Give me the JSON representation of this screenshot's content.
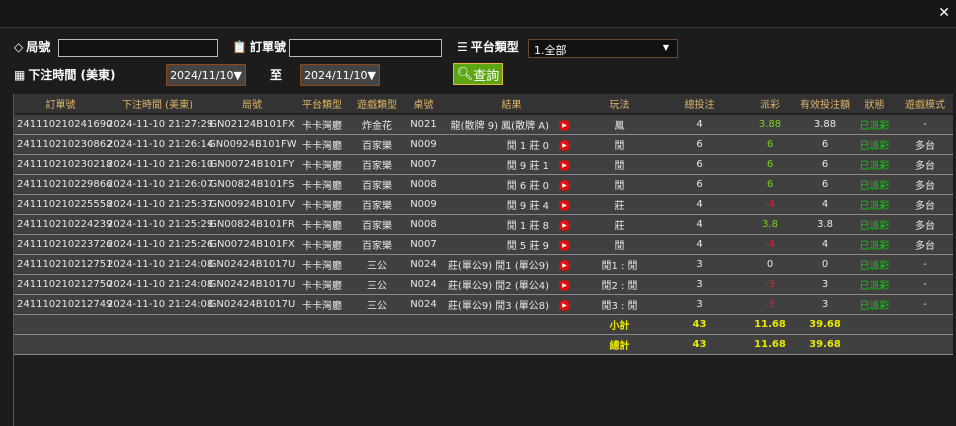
{
  "window": {
    "close_icon": "close-icon"
  },
  "filters": {
    "round_label": "局號",
    "round_value": "",
    "order_label": "訂單號",
    "order_value": "",
    "platform_label": "平台類型",
    "platform_value": "1.全部",
    "time_label": "下注時間 (美東)",
    "date_from": "2024/11/10▼",
    "to_label": "至",
    "date_to": "2024/11/10▼",
    "query_label": "查詢"
  },
  "table": {
    "headers": [
      "訂單號",
      "下注時間 (美東)",
      "局號",
      "平台類型",
      "遊戲類型",
      "桌號",
      "結果",
      "玩法",
      "總投注",
      "派彩",
      "有效投注額",
      "狀態",
      "遊戲模式"
    ],
    "rows": [
      [
        "241110210241690",
        "2024-11-10 21:27:29",
        "GN02124B101FX",
        "卡卡灣廳",
        "炸金花",
        "N021",
        "龍(散牌 9) 鳳(散牌 A)",
        "鳳",
        "4",
        "3.88",
        "3.88",
        "已派彩",
        "-"
      ],
      [
        "241110210230862",
        "2024-11-10 21:26:14",
        "GN00924B101FW",
        "卡卡灣廳",
        "百家樂",
        "N009",
        "閒 1 莊 0",
        "閒",
        "6",
        "6",
        "6",
        "已派彩",
        "多台"
      ],
      [
        "241110210230218",
        "2024-11-10 21:26:10",
        "GN00724B101FY",
        "卡卡灣廳",
        "百家樂",
        "N007",
        "閒 9 莊 1",
        "閒",
        "6",
        "6",
        "6",
        "已派彩",
        "多台"
      ],
      [
        "241110210229866",
        "2024-11-10 21:26:07",
        "GN00824B101FS",
        "卡卡灣廳",
        "百家樂",
        "N008",
        "閒 6 莊 0",
        "閒",
        "6",
        "6",
        "6",
        "已派彩",
        "多台"
      ],
      [
        "241110210225558",
        "2024-11-10 21:25:37",
        "GN00924B101FV",
        "卡卡灣廳",
        "百家樂",
        "N009",
        "閒 9 莊 4",
        "莊",
        "4",
        "-4",
        "4",
        "已派彩",
        "多台"
      ],
      [
        "241110210224239",
        "2024-11-10 21:25:29",
        "GN00824B101FR",
        "卡卡灣廳",
        "百家樂",
        "N008",
        "閒 1 莊 8",
        "莊",
        "4",
        "3.8",
        "3.8",
        "已派彩",
        "多台"
      ],
      [
        "241110210223726",
        "2024-11-10 21:25:26",
        "GN00724B101FX",
        "卡卡灣廳",
        "百家樂",
        "N007",
        "閒 5 莊 9",
        "閒",
        "4",
        "-4",
        "4",
        "已派彩",
        "多台"
      ],
      [
        "241110210212751",
        "2024-11-10 21:24:08",
        "GN02424B1017U",
        "卡卡灣廳",
        "三公",
        "N024",
        "莊(單公9) 閒1 (單公9)",
        "閒1 : 閒",
        "3",
        "0",
        "0",
        "已派彩",
        "-"
      ],
      [
        "241110210212750",
        "2024-11-10 21:24:08",
        "GN02424B1017U",
        "卡卡灣廳",
        "三公",
        "N024",
        "莊(單公9) 閒2 (單公4)",
        "閒2 : 閒",
        "3",
        "-3",
        "3",
        "已派彩",
        "-"
      ],
      [
        "241110210212749",
        "2024-11-10 21:24:08",
        "GN02424B1017U",
        "卡卡灣廳",
        "三公",
        "N024",
        "莊(單公9) 閒3 (單公8)",
        "閒3 : 閒",
        "3",
        "-3",
        "3",
        "已派彩",
        "-"
      ]
    ],
    "subtotal": {
      "label": "小計",
      "bet": "43",
      "payout": "11.68",
      "valid": "39.68"
    },
    "total": {
      "label": "總計",
      "bet": "43",
      "payout": "11.68",
      "valid": "39.68"
    }
  },
  "colors": {
    "positive": "#7ad21a",
    "negative": "#e02030",
    "status": "#1ec81e",
    "header": "#e0b56b",
    "summary": "#e8e800",
    "query_button": "#5ca614"
  }
}
